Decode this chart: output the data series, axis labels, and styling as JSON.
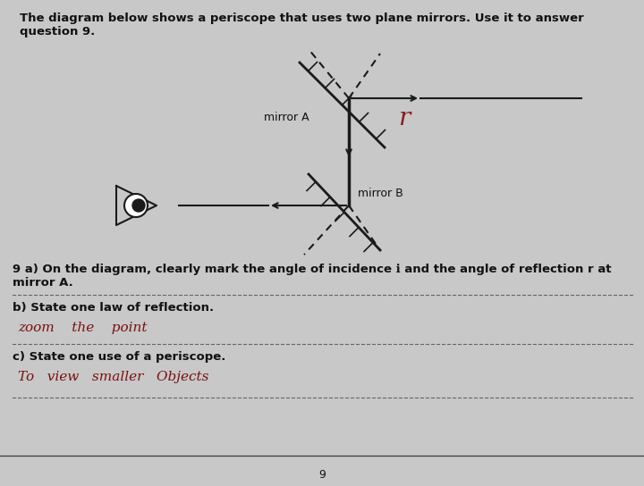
{
  "bg_color": "#c8c8c8",
  "title_text": "The diagram below shows a periscope that uses two plane mirrors. Use it to answer\nquestion 9.",
  "title_fontsize": 9.5,
  "mirror_A_label": "mirror A",
  "mirror_B_label": "mirror B",
  "question_9a": "9 a) On the diagram, clearly mark the angle of incidence ℹ and the angle of reflection r at\nmirror A.",
  "question_9b": "b) State one law of reflection.",
  "answer_9b": "zoom    the    point",
  "question_9c": "c) State one use of a periscope.",
  "answer_9c": "To   view   smaller   Objects",
  "font_color": "#111111",
  "line_color": "#1a1a1a",
  "handwriting_color": "#7a1010",
  "r_annotation": "r"
}
